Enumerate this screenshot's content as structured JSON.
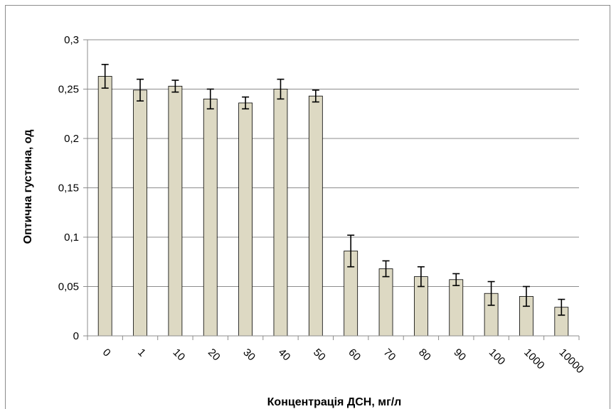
{
  "chart_data": {
    "type": "bar",
    "title": "",
    "xlabel": "Концентрація ДСН, мг/л",
    "ylabel": "Оптична густина, од",
    "categories": [
      "0",
      "1",
      "10",
      "20",
      "30",
      "40",
      "50",
      "60",
      "70",
      "80",
      "90",
      "100",
      "1000",
      "10000"
    ],
    "values": [
      0.263,
      0.249,
      0.253,
      0.24,
      0.236,
      0.25,
      0.243,
      0.086,
      0.068,
      0.06,
      0.057,
      0.043,
      0.04,
      0.029
    ],
    "error": [
      0.012,
      0.011,
      0.006,
      0.01,
      0.006,
      0.01,
      0.006,
      0.016,
      0.008,
      0.01,
      0.006,
      0.012,
      0.01,
      0.008
    ],
    "ylim": [
      0,
      0.3
    ],
    "yticks": [
      0,
      0.05,
      0.1,
      0.15,
      0.2,
      0.25,
      0.3
    ],
    "ytick_labels": [
      "0",
      "0,05",
      "0,1",
      "0,15",
      "0,2",
      "0,25",
      "0,3"
    ],
    "grid": true,
    "legend": "none",
    "bar_color": "#ddd9c3",
    "bar_edge_color": "#000000",
    "grid_color": "#8c8c8c"
  }
}
